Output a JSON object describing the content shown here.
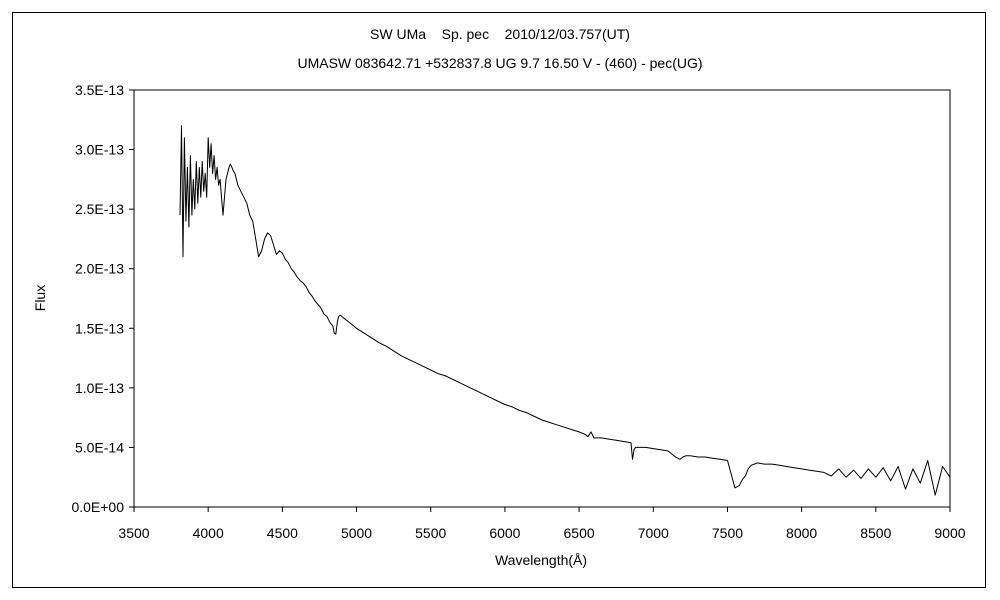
{
  "chart_data": {
    "type": "line",
    "title": "SW UMa    Sp. pec    2010/12/03.757(UT)",
    "subtitle": "UMASW 083642.71 +532837.8 UG 9.7 16.50 V - (460) - pec(UG)",
    "xlabel": "Wavelength(Å)",
    "ylabel": "Flux",
    "xlim": [
      3500,
      9000
    ],
    "ylim": [
      0,
      3.5e-13
    ],
    "grid": false,
    "x_ticks": [
      3500,
      4000,
      4500,
      5000,
      5500,
      6000,
      6500,
      7000,
      7500,
      8000,
      8500,
      9000
    ],
    "x_tick_labels": [
      "3500",
      "4000",
      "4500",
      "5000",
      "5500",
      "6000",
      "6500",
      "7000",
      "7500",
      "8000",
      "8500",
      "9000"
    ],
    "y_ticks": [
      0,
      5e-14,
      1e-13,
      1.5e-13,
      2e-13,
      2.5e-13,
      3e-13,
      3.5e-13
    ],
    "y_tick_labels": [
      "0.0E+00",
      "5.0E-14",
      "1.0E-13",
      "1.5E-13",
      "2.0E-13",
      "2.5E-13",
      "3.0E-13",
      "3.5E-13"
    ],
    "series": [
      {
        "color": "#000000",
        "x": [
          3810,
          3820,
          3830,
          3840,
          3850,
          3860,
          3870,
          3880,
          3890,
          3900,
          3910,
          3920,
          3930,
          3940,
          3950,
          3960,
          3970,
          3980,
          3990,
          4000,
          4010,
          4020,
          4030,
          4040,
          4050,
          4060,
          4070,
          4080,
          4090,
          4100,
          4110,
          4120,
          4130,
          4140,
          4150,
          4160,
          4170,
          4180,
          4190,
          4200,
          4220,
          4240,
          4260,
          4280,
          4300,
          4320,
          4340,
          4360,
          4380,
          4400,
          4420,
          4440,
          4460,
          4480,
          4500,
          4520,
          4540,
          4560,
          4580,
          4600,
          4620,
          4640,
          4660,
          4680,
          4700,
          4720,
          4740,
          4760,
          4780,
          4800,
          4820,
          4840,
          4850,
          4860,
          4870,
          4880,
          4890,
          4900,
          4920,
          4940,
          4960,
          4980,
          5000,
          5050,
          5100,
          5150,
          5200,
          5250,
          5300,
          5350,
          5400,
          5450,
          5500,
          5550,
          5600,
          5650,
          5700,
          5750,
          5800,
          5850,
          5900,
          5950,
          6000,
          6050,
          6100,
          6150,
          6200,
          6250,
          6300,
          6350,
          6400,
          6450,
          6500,
          6540,
          6560,
          6580,
          6600,
          6650,
          6700,
          6750,
          6800,
          6850,
          6860,
          6870,
          6880,
          6900,
          6950,
          7000,
          7050,
          7100,
          7150,
          7180,
          7200,
          7220,
          7250,
          7300,
          7350,
          7400,
          7450,
          7500,
          7550,
          7580,
          7600,
          7620,
          7640,
          7660,
          7680,
          7700,
          7750,
          7800,
          7850,
          7900,
          7950,
          8000,
          8050,
          8100,
          8150,
          8200,
          8250,
          8300,
          8350,
          8400,
          8450,
          8500,
          8550,
          8600,
          8650,
          8700,
          8750,
          8800,
          8850,
          8900,
          8950,
          9000
        ],
        "values": [
          2.45e-13,
          3.2e-13,
          2.1e-13,
          3.1e-13,
          2.4e-13,
          2.85e-13,
          2.35e-13,
          2.95e-13,
          2.45e-13,
          2.75e-13,
          2.5e-13,
          2.9e-13,
          2.55e-13,
          2.85e-13,
          2.6e-13,
          2.9e-13,
          2.65e-13,
          2.8e-13,
          2.6e-13,
          3.1e-13,
          2.85e-13,
          3.05e-13,
          2.8e-13,
          2.95e-13,
          2.75e-13,
          2.85e-13,
          2.7e-13,
          2.75e-13,
          2.6e-13,
          2.45e-13,
          2.6e-13,
          2.75e-13,
          2.8e-13,
          2.85e-13,
          2.88e-13,
          2.85e-13,
          2.82e-13,
          2.8e-13,
          2.75e-13,
          2.7e-13,
          2.65e-13,
          2.6e-13,
          2.55e-13,
          2.45e-13,
          2.4e-13,
          2.25e-13,
          2.1e-13,
          2.15e-13,
          2.25e-13,
          2.3e-13,
          2.28e-13,
          2.2e-13,
          2.12e-13,
          2.15e-13,
          2.13e-13,
          2.08e-13,
          2.05e-13,
          2e-13,
          1.97e-13,
          1.93e-13,
          1.9e-13,
          1.88e-13,
          1.85e-13,
          1.8e-13,
          1.77e-13,
          1.73e-13,
          1.7e-13,
          1.67e-13,
          1.62e-13,
          1.6e-13,
          1.55e-13,
          1.52e-13,
          1.46e-13,
          1.45e-13,
          1.55e-13,
          1.6e-13,
          1.61e-13,
          1.6e-13,
          1.58e-13,
          1.56e-13,
          1.54e-13,
          1.52e-13,
          1.5e-13,
          1.46e-13,
          1.42e-13,
          1.38e-13,
          1.35e-13,
          1.31e-13,
          1.27e-13,
          1.24e-13,
          1.21e-13,
          1.18e-13,
          1.15e-13,
          1.12e-13,
          1.1e-13,
          1.07e-13,
          1.04e-13,
          1.01e-13,
          9.8e-14,
          9.5e-14,
          9.2e-14,
          8.9e-14,
          8.6e-14,
          8.4e-14,
          8.1e-14,
          7.9e-14,
          7.6e-14,
          7.3e-14,
          7.1e-14,
          6.9e-14,
          6.7e-14,
          6.5e-14,
          6.3e-14,
          6.1e-14,
          5.9e-14,
          6.3e-14,
          5.8e-14,
          5.8e-14,
          5.7e-14,
          5.6e-14,
          5.5e-14,
          5.4e-14,
          4e-14,
          4.8e-14,
          5e-14,
          5e-14,
          5e-14,
          4.9e-14,
          4.8e-14,
          4.7e-14,
          4.2e-14,
          4e-14,
          4.2e-14,
          4.3e-14,
          4.3e-14,
          4.2e-14,
          4.2e-14,
          4.1e-14,
          4e-14,
          3.9e-14,
          1.6e-14,
          1.8e-14,
          2.3e-14,
          2.6e-14,
          3.2e-14,
          3.5e-14,
          3.6e-14,
          3.7e-14,
          3.6e-14,
          3.6e-14,
          3.5e-14,
          3.4e-14,
          3.3e-14,
          3.2e-14,
          3.1e-14,
          3e-14,
          2.9e-14,
          2.6e-14,
          3.2e-14,
          2.5e-14,
          3.1e-14,
          2.4e-14,
          3.2e-14,
          2.5e-14,
          3.3e-14,
          2.2e-14,
          3.4e-14,
          1.5e-14,
          3.2e-14,
          2e-14,
          3.9e-14,
          1e-14,
          3.4e-14,
          2.5e-14
        ]
      }
    ]
  }
}
